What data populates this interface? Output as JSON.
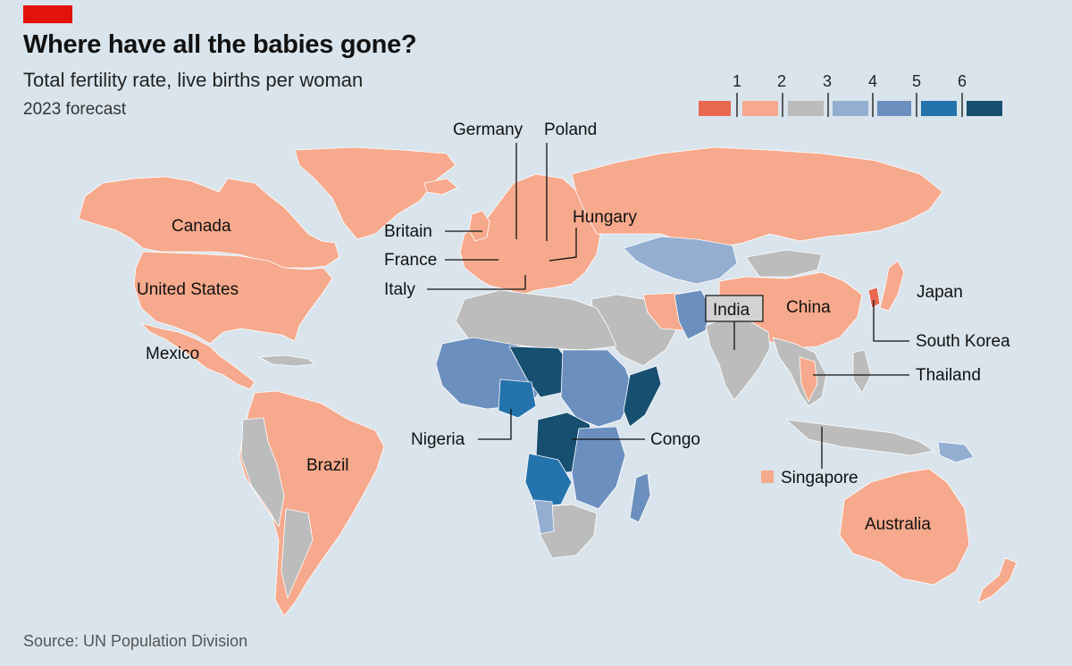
{
  "header": {
    "title": "Where have all the babies gone?",
    "subtitle": "Total fertility rate, live births per woman",
    "note": "2023 forecast"
  },
  "source": "Source: UN Population Division",
  "legend": {
    "ticks": [
      "1",
      "2",
      "3",
      "4",
      "5",
      "6"
    ],
    "colors": [
      "#e8684f",
      "#f6a98c",
      "#bcbcbc",
      "#93aed1",
      "#6b8fbe",
      "#2473ad",
      "#174f71"
    ]
  },
  "palette": {
    "ocean": "#d9e4ec",
    "low": "#f6a98c",
    "mid": "#bcbcbc",
    "blue1": "#93aed1",
    "blue2": "#6b8fbe",
    "blue3": "#2473ad",
    "blue4": "#174f71",
    "lowest": "#e8684f",
    "accent": "#e3120b"
  },
  "labels": {
    "canada": "Canada",
    "united_states": "United States",
    "mexico": "Mexico",
    "brazil": "Brazil",
    "britain": "Britain",
    "france": "France",
    "italy": "Italy",
    "germany": "Germany",
    "poland": "Poland",
    "hungary": "Hungary",
    "india": "India",
    "china": "China",
    "japan": "Japan",
    "south_korea": "South Korea",
    "thailand": "Thailand",
    "nigeria": "Nigeria",
    "congo": "Congo",
    "singapore": "Singapore",
    "australia": "Australia"
  }
}
